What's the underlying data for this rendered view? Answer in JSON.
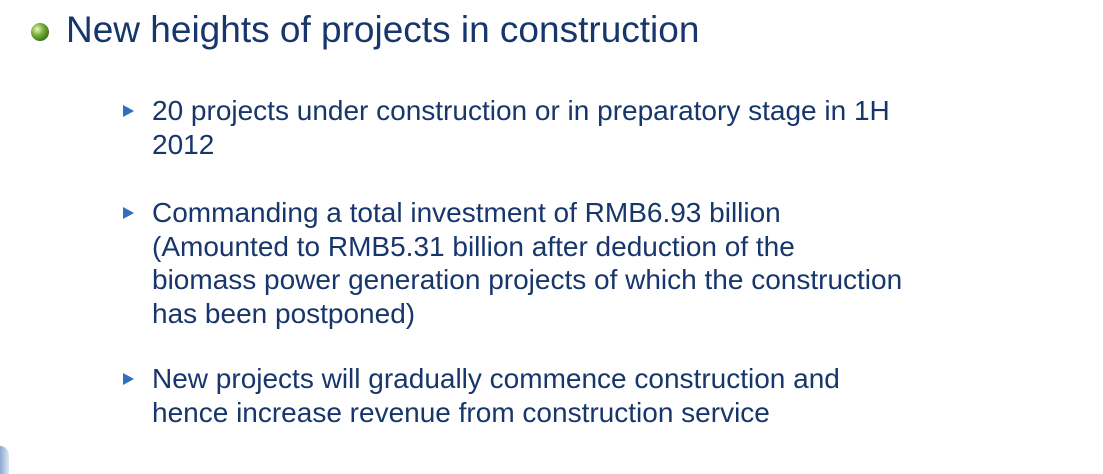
{
  "heading": "New heights of projects in construction",
  "bullets": [
    {
      "lines": [
        "20 projects under construction or in preparatory stage in 1H",
        "2012"
      ]
    },
    {
      "lines": [
        "Commanding a total investment of RMB6.93 billion",
        "(Amounted to RMB5.31 billion after deduction of the",
        "biomass power generation projects of which the construction",
        "has been postponed)"
      ]
    },
    {
      "lines": [
        "New projects will gradually commence construction and",
        "hence increase revenue from construction service"
      ]
    }
  ]
}
